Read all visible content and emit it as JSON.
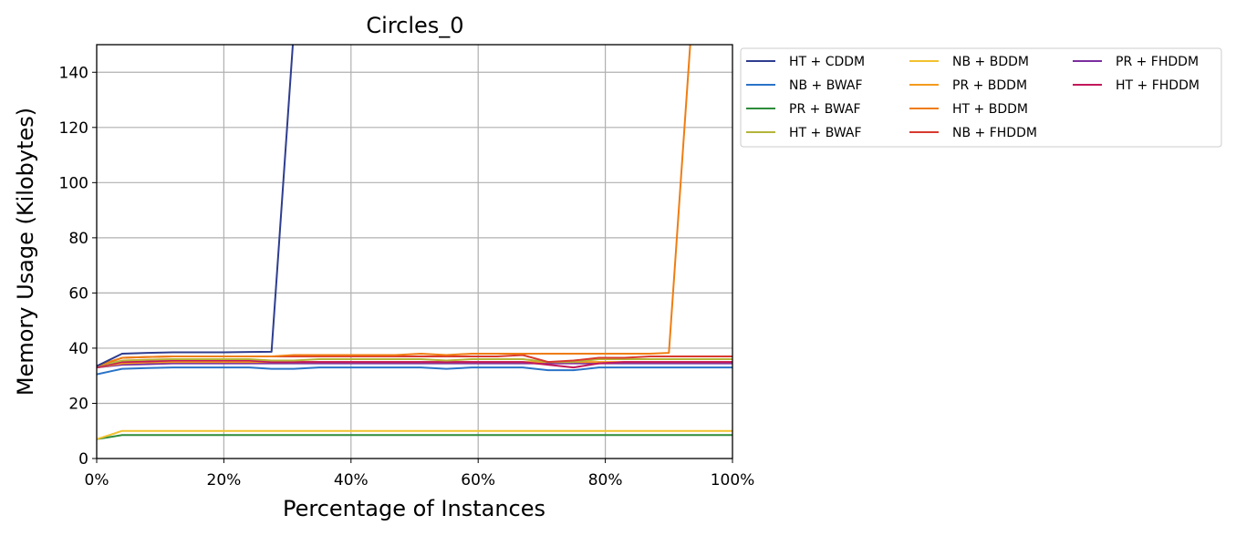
{
  "chart_data": {
    "type": "line",
    "title": "Circles_0",
    "xlabel": "Percentage of Instances",
    "ylabel": "Memory Usage (Kilobytes)",
    "xlim": [
      0,
      100
    ],
    "ylim": [
      0,
      150
    ],
    "xticks": [
      0,
      20,
      40,
      60,
      80,
      100
    ],
    "xtick_labels": [
      "0%",
      "20%",
      "40%",
      "60%",
      "80%",
      "100%"
    ],
    "yticks": [
      0,
      20,
      40,
      60,
      80,
      100,
      120,
      140
    ],
    "ytick_labels": [
      "0",
      "20",
      "40",
      "60",
      "80",
      "100",
      "120",
      "140"
    ],
    "grid": true,
    "legend_position": "outside-right",
    "legend_columns": 3,
    "x": [
      0,
      4,
      8,
      12,
      16,
      20,
      24,
      27.5,
      31,
      35,
      39,
      43,
      47,
      51,
      55,
      59,
      63,
      67,
      71,
      75,
      79,
      83,
      87,
      90,
      93.5,
      97,
      100
    ],
    "series": [
      {
        "name": "HT + CDDM",
        "color": "#2e3d8f",
        "values": [
          33.5,
          38,
          38.3,
          38.5,
          38.5,
          38.5,
          38.6,
          38.7,
          155,
          null,
          null,
          null,
          null,
          null,
          null,
          null,
          null,
          null,
          null,
          null,
          null,
          null,
          null,
          null,
          null,
          null,
          null
        ]
      },
      {
        "name": "NB + BWAF",
        "color": "#2a73c8",
        "values": [
          30.5,
          32.5,
          32.8,
          33,
          33,
          33,
          33,
          32.5,
          32.5,
          33,
          33,
          33,
          33,
          33,
          32.5,
          33,
          33,
          33,
          32,
          32,
          33,
          33,
          33,
          33,
          33,
          33,
          33
        ]
      },
      {
        "name": "PR + BWAF",
        "color": "#2e8b3a",
        "values": [
          7,
          8.5,
          8.5,
          8.5,
          8.5,
          8.5,
          8.5,
          8.5,
          8.5,
          8.5,
          8.5,
          8.5,
          8.5,
          8.5,
          8.5,
          8.5,
          8.5,
          8.5,
          8.5,
          8.5,
          8.5,
          8.5,
          8.5,
          8.5,
          8.5,
          8.5,
          8.5
        ]
      },
      {
        "name": "HT + BWAF",
        "color": "#b5b53a",
        "values": [
          33.5,
          35.5,
          35.8,
          36,
          36,
          36,
          36,
          35.5,
          35.5,
          36,
          36,
          36,
          36,
          36,
          35.5,
          36,
          36,
          36,
          35,
          35,
          36,
          36,
          36,
          36,
          36,
          36,
          36
        ]
      },
      {
        "name": "NB + BDDM",
        "color": "#f2c12e",
        "values": [
          7,
          10,
          10,
          10,
          10,
          10,
          10,
          10,
          10,
          10,
          10,
          10,
          10,
          10,
          10,
          10,
          10,
          10,
          10,
          10,
          10,
          10,
          10,
          10,
          10,
          10,
          10
        ]
      },
      {
        "name": "PR + BDDM",
        "color": "#f59a1c",
        "values": [
          33,
          34.5,
          34.8,
          35,
          35,
          35,
          35,
          35,
          35,
          35,
          35,
          35,
          35,
          35,
          35,
          35,
          35,
          35,
          35,
          35,
          35,
          35,
          35,
          35,
          35,
          35,
          35
        ]
      },
      {
        "name": "HT + BDDM",
        "color": "#ef7d12",
        "values": [
          33.5,
          36.5,
          36.8,
          37,
          37,
          37,
          37,
          37,
          37.5,
          37.5,
          37.5,
          37.5,
          37.5,
          38,
          37.5,
          38,
          38,
          38,
          38,
          38,
          38,
          38,
          38,
          38.3,
          155,
          null,
          null
        ]
      },
      {
        "name": "NB + FHDDM",
        "color": "#d83a2e",
        "values": [
          33.5,
          36.5,
          36.8,
          37,
          37,
          37,
          37,
          37,
          37,
          37,
          37,
          37,
          37,
          37,
          37,
          37,
          37,
          37.5,
          35,
          35.5,
          36.5,
          36.5,
          37,
          37,
          37,
          37,
          37
        ]
      },
      {
        "name": "PR + FHDDM",
        "color": "#7b2e9e",
        "values": [
          33,
          34,
          34.2,
          34.5,
          34.5,
          34.5,
          34.5,
          34.5,
          34.5,
          34.5,
          34.5,
          34.5,
          34.5,
          34.5,
          34.5,
          34.5,
          34.5,
          34.5,
          34.5,
          34.5,
          34.5,
          34.5,
          34.5,
          34.5,
          34.5,
          34.5,
          34.5
        ]
      },
      {
        "name": "HT + FHDDM",
        "color": "#c2185b",
        "values": [
          33,
          35,
          35.2,
          35.5,
          35.5,
          35.5,
          35.5,
          35,
          35,
          35,
          35,
          35,
          35,
          35,
          35,
          35,
          35,
          35,
          34,
          33,
          34.5,
          35,
          35,
          35,
          35,
          35,
          35
        ]
      }
    ]
  }
}
